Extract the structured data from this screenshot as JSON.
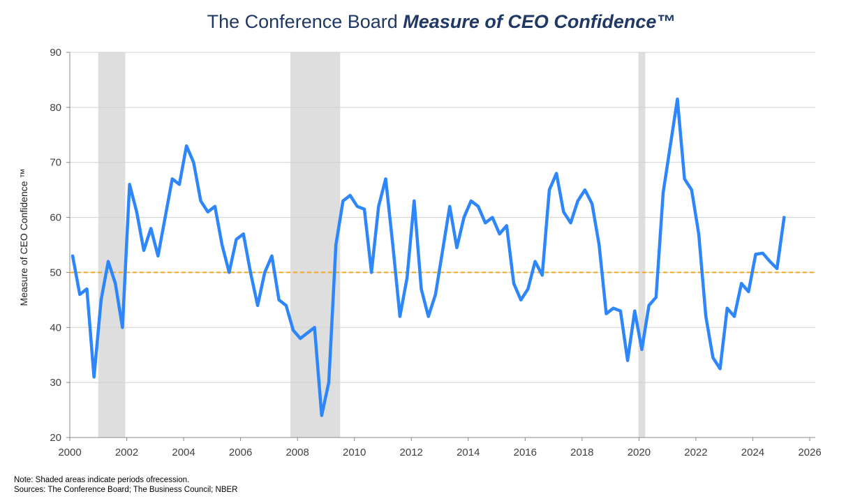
{
  "title": {
    "prefix": "The Conference Board ",
    "emphasis": "Measure of CEO Confidence™"
  },
  "notes": {
    "line1": "Note: Shaded areas indicate periods ofrecession.",
    "line2": "Sources: The Conference Board; The Business Council; NBER"
  },
  "colors": {
    "line": "#2e86fb",
    "reference": "#f5a623",
    "recession": "#dedede",
    "grid": "#d0d0d0",
    "title": "#1f3864"
  },
  "chart_data": {
    "type": "line",
    "title": "The Conference Board Measure of CEO Confidence™",
    "xlabel": "",
    "ylabel": "Measure of CEO Confidence ™",
    "xlim": [
      2000,
      2026
    ],
    "ylim": [
      20,
      90
    ],
    "xticks": [
      "2000",
      "2002",
      "2004",
      "2006",
      "2008",
      "2010",
      "2012",
      "2014",
      "2016",
      "2018",
      "2020",
      "2022",
      "2024",
      "2026"
    ],
    "yticks": [
      "20",
      "30",
      "40",
      "50",
      "60",
      "70",
      "80",
      "90"
    ],
    "grid": true,
    "reference_line": {
      "y": 50,
      "style": "dashed"
    },
    "recessions": [
      [
        2001.0,
        2001.95
      ],
      [
        2007.75,
        2009.5
      ],
      [
        2019.98,
        2020.22
      ]
    ],
    "series": [
      {
        "name": "Measure of CEO Confidence",
        "start_year": 2000,
        "frequency": "quarterly",
        "values": [
          53,
          46,
          47,
          31,
          45,
          52,
          48,
          40,
          66,
          61,
          54,
          58,
          53,
          60,
          67,
          66,
          73,
          70,
          63,
          61,
          62,
          55,
          50,
          56,
          57,
          50,
          44,
          50,
          53,
          45,
          44,
          39.5,
          38,
          39,
          40,
          24,
          30,
          55,
          63,
          64,
          62,
          61.5,
          50,
          62,
          67,
          55,
          42,
          49,
          63,
          47,
          42,
          46,
          54,
          62,
          54.5,
          60,
          63,
          62,
          59,
          60,
          57,
          58.5,
          48,
          45,
          47,
          52,
          49.5,
          65,
          68,
          61,
          59,
          63,
          65,
          62.5,
          55,
          42.5,
          43.5,
          43,
          34,
          43,
          36,
          44,
          45.5,
          64.5,
          73,
          81.5,
          67,
          65,
          57,
          42,
          34.5,
          32.5,
          43.5,
          42,
          48,
          46.5,
          53.3,
          53.5,
          52,
          50.7,
          60
        ]
      }
    ]
  }
}
